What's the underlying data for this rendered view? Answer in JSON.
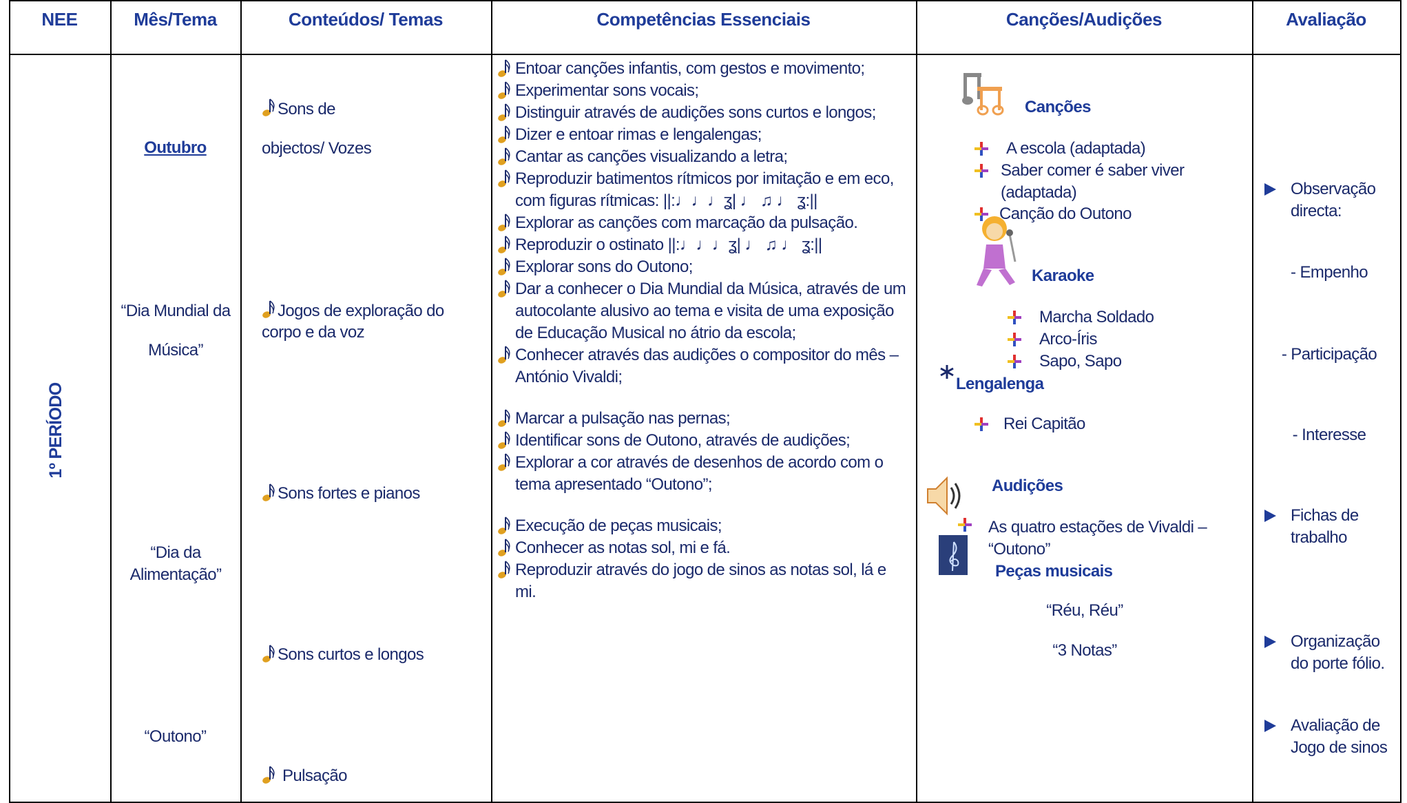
{
  "header": {
    "columns": [
      "NEE",
      "Mês/Tema",
      "Conteúdos/ Temas",
      "Competências Essenciais",
      "Canções/Audições",
      "Avaliação"
    ]
  },
  "period": "1º PERÍODO",
  "month_theme": [
    "Outubro",
    "“Dia Mundial da Música”",
    "“Dia da Alimentação”",
    "“Outono”"
  ],
  "contents": [
    "Sons de objectos/ Vozes",
    "Jogos de exploração do corpo e da voz",
    "Sons fortes e pianos",
    "Sons curtos e longos",
    "Pulsação"
  ],
  "competencies": [
    [
      "Entoar canções infantis, com gestos e movimento;",
      "Experimentar sons vocais;",
      "Distinguir através de audições sons curtos e longos;",
      "Dizer e entoar rimas e lengalengas;",
      "Cantar as canções visualizando a letra;",
      "Reproduzir batimentos rítmicos por imitação e em eco, com figuras rítmicas: ||:♩♩♩ʓ| ♩ ♫ ♩ ʓ:||",
      "Explorar as canções com marcação da pulsação.",
      "Reproduzir o ostinato ||:♩♩♩ʓ| ♩ ♫ ♩ ʓ:||",
      "Explorar sons do Outono;",
      "Dar a conhecer o Dia Mundial da Música, através de um autocolante alusivo ao tema e visita de uma exposição de Educação Musical no átrio da escola;",
      "Conhecer através das audições o compositor do mês – António Vivaldi;"
    ],
    [
      "Marcar a pulsação nas pernas;",
      "Identificar sons de Outono, através de audições;",
      "Explorar a cor através de desenhos de acordo com o tema apresentado “Outono”;"
    ],
    [
      "Execução de peças musicais;",
      "Conhecer as notas sol, mi e fá.",
      "Reproduzir através do jogo de sinos as notas sol, lá e mi."
    ]
  ],
  "songs": {
    "cancoes": {
      "title": "Canções",
      "items": [
        "A escola (adaptada)",
        "Saber comer é saber viver (adaptada)",
        "Canção do Outono"
      ]
    },
    "karaoke": {
      "title": "Karaoke",
      "items": [
        "Marcha Soldado",
        "Arco-Íris",
        "Sapo, Sapo"
      ]
    },
    "lengalenga": {
      "title": "Lengalenga",
      "items": [
        "Rei Capitão"
      ]
    },
    "audicoes": {
      "title": "Audições",
      "items": [
        "As quatro estações de Vivaldi – “Outono”"
      ]
    },
    "pecas": {
      "title": "Peças musicais",
      "items": [
        "“Réu, Réu”",
        "“3 Notas”"
      ]
    }
  },
  "evaluation": {
    "items": [
      "Observação directa:",
      "Fichas de trabalho",
      "Organização do porte fólio.",
      "Avaliação de Jogo de sinos"
    ],
    "criteria": [
      "- Empenho",
      "- Participação",
      "- Interesse"
    ]
  }
}
